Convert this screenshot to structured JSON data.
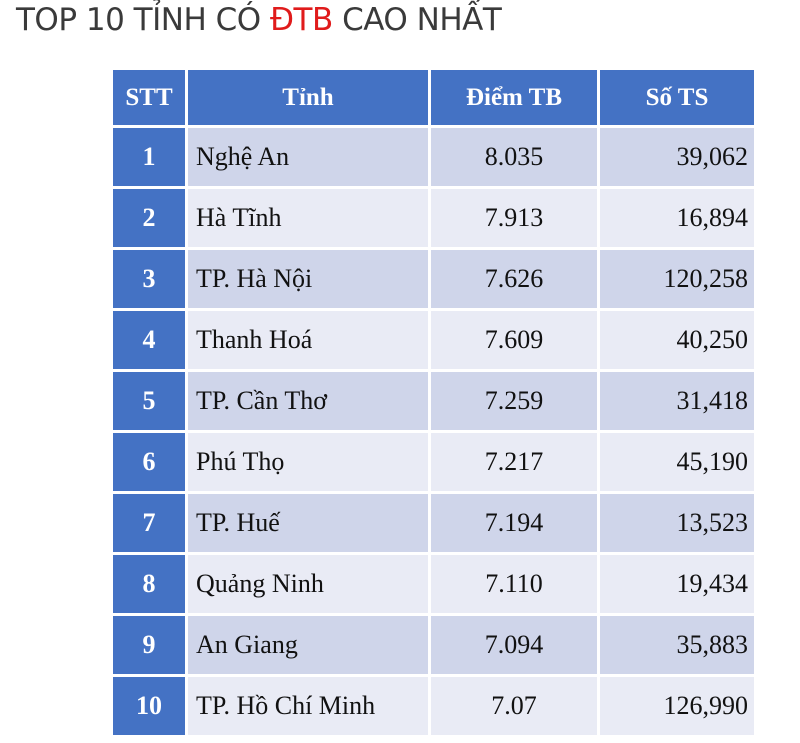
{
  "title": {
    "part1": "TOP 10 TỈNH CÓ ",
    "highlight": "ĐTB",
    "part2": " CAO NHẤT"
  },
  "colors": {
    "header": "#4472c4",
    "row_odd": "#cfd5ea",
    "row_even": "#e9ebf5",
    "highlight": "#e01b1b"
  },
  "table": {
    "headers": [
      "STT",
      "Tỉnh",
      "Điểm TB",
      "Số TS"
    ],
    "rows": [
      {
        "stt": "1",
        "tinh": "Nghệ An",
        "diem": "8.035",
        "so": "39,062"
      },
      {
        "stt": "2",
        "tinh": "Hà Tĩnh",
        "diem": "7.913",
        "so": "16,894"
      },
      {
        "stt": "3",
        "tinh": "TP. Hà Nội",
        "diem": "7.626",
        "so": "120,258"
      },
      {
        "stt": "4",
        "tinh": "Thanh Hoá",
        "diem": "7.609",
        "so": "40,250"
      },
      {
        "stt": "5",
        "tinh": "TP. Cần Thơ",
        "diem": "7.259",
        "so": "31,418"
      },
      {
        "stt": "6",
        "tinh": "Phú Thọ",
        "diem": "7.217",
        "so": "45,190"
      },
      {
        "stt": "7",
        "tinh": "TP. Huế",
        "diem": "7.194",
        "so": "13,523"
      },
      {
        "stt": "8",
        "tinh": "Quảng Ninh",
        "diem": "7.110",
        "so": "19,434"
      },
      {
        "stt": "9",
        "tinh": "An Giang",
        "diem": "7.094",
        "so": "35,883"
      },
      {
        "stt": "10",
        "tinh": "TP. Hồ Chí Minh",
        "diem": "7.07",
        "so": "126,990"
      }
    ]
  }
}
